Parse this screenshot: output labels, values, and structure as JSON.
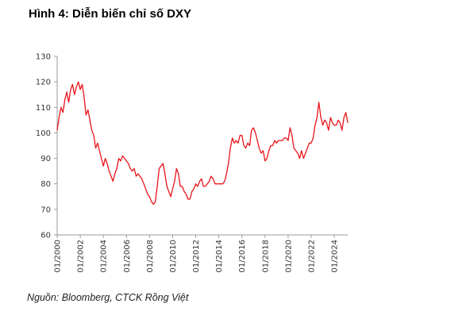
{
  "header": {
    "title": "Hình 4: Diễn biến chỉ số DXY"
  },
  "footer": {
    "source": "Nguồn: Bloomberg,  CTCK Rồng Việt"
  },
  "colors": {
    "series": "#e8141b",
    "axis": "#9a9a9a",
    "text": "#333333"
  },
  "chart_data": {
    "type": "line",
    "title": "",
    "xlabel": "",
    "ylabel": "",
    "ylim": [
      60,
      130
    ],
    "yticks": [
      60,
      70,
      80,
      90,
      100,
      110,
      120,
      130
    ],
    "xlim": [
      "2000-01",
      "2025-03"
    ],
    "xtick_labels": [
      "01/2000",
      "01/2002",
      "01/2004",
      "01/2006",
      "01/2008",
      "01/2010",
      "01/2012",
      "01/2014",
      "01/2016",
      "01/2018",
      "01/2020",
      "01/2022",
      "01/2024"
    ],
    "grid": false,
    "legend": "none",
    "series": [
      {
        "x": [
          "2000-01",
          "2000-03",
          "2000-05",
          "2000-07",
          "2000-09",
          "2000-11",
          "2001-01",
          "2001-03",
          "2001-05",
          "2001-07",
          "2001-09",
          "2001-11",
          "2002-01",
          "2002-03",
          "2002-05",
          "2002-07",
          "2002-09",
          "2002-11",
          "2003-01",
          "2003-03",
          "2003-05",
          "2003-07",
          "2003-09",
          "2003-11",
          "2004-01",
          "2004-03",
          "2004-05",
          "2004-07",
          "2004-09",
          "2004-11",
          "2005-01",
          "2005-03",
          "2005-05",
          "2005-07",
          "2005-09",
          "2005-11",
          "2006-01",
          "2006-03",
          "2006-05",
          "2006-07",
          "2006-09",
          "2006-11",
          "2007-01",
          "2007-03",
          "2007-05",
          "2007-07",
          "2007-09",
          "2007-11",
          "2008-01",
          "2008-03",
          "2008-05",
          "2008-07",
          "2008-09",
          "2008-11",
          "2009-01",
          "2009-03",
          "2009-05",
          "2009-07",
          "2009-09",
          "2009-11",
          "2010-01",
          "2010-03",
          "2010-05",
          "2010-07",
          "2010-09",
          "2010-11",
          "2011-01",
          "2011-03",
          "2011-05",
          "2011-07",
          "2011-09",
          "2011-11",
          "2012-01",
          "2012-03",
          "2012-05",
          "2012-07",
          "2012-09",
          "2012-11",
          "2013-01",
          "2013-03",
          "2013-05",
          "2013-07",
          "2013-09",
          "2013-11",
          "2014-01",
          "2014-03",
          "2014-05",
          "2014-07",
          "2014-09",
          "2014-11",
          "2015-01",
          "2015-03",
          "2015-05",
          "2015-07",
          "2015-09",
          "2015-11",
          "2016-01",
          "2016-03",
          "2016-05",
          "2016-07",
          "2016-09",
          "2016-11",
          "2017-01",
          "2017-03",
          "2017-05",
          "2017-07",
          "2017-09",
          "2017-11",
          "2018-01",
          "2018-03",
          "2018-05",
          "2018-07",
          "2018-09",
          "2018-11",
          "2019-01",
          "2019-03",
          "2019-05",
          "2019-07",
          "2019-09",
          "2019-11",
          "2020-01",
          "2020-03",
          "2020-05",
          "2020-07",
          "2020-09",
          "2020-11",
          "2021-01",
          "2021-03",
          "2021-05",
          "2021-07",
          "2021-09",
          "2021-11",
          "2022-01",
          "2022-03",
          "2022-05",
          "2022-07",
          "2022-09",
          "2022-11",
          "2023-01",
          "2023-03",
          "2023-05",
          "2023-07",
          "2023-09",
          "2023-11",
          "2024-01",
          "2024-03",
          "2024-05",
          "2024-07",
          "2024-09",
          "2024-11",
          "2025-01",
          "2025-03"
        ],
        "values": [
          101,
          106,
          110,
          108,
          113,
          116,
          112,
          117,
          119,
          115,
          118,
          120,
          117,
          119,
          114,
          107,
          109,
          105,
          101,
          99,
          94,
          96,
          93,
          90,
          87,
          90,
          88,
          85,
          83,
          81,
          84,
          86,
          90,
          89,
          91,
          90,
          89,
          88,
          86,
          85,
          86,
          83,
          84,
          83,
          82,
          80,
          78,
          76,
          75,
          73,
          72,
          73,
          79,
          86,
          87,
          88,
          84,
          79,
          77,
          75,
          78,
          81,
          86,
          84,
          79,
          79,
          77,
          76,
          74,
          74,
          77,
          78,
          80,
          79,
          81,
          82,
          79,
          79,
          80,
          81,
          83,
          82,
          80,
          80,
          80,
          80,
          80,
          81,
          84,
          88,
          94,
          98,
          96,
          97,
          96,
          99,
          99,
          95,
          94,
          96,
          95,
          101,
          102,
          100,
          97,
          94,
          92,
          93,
          89,
          90,
          93,
          95,
          95,
          97,
          96,
          97,
          97,
          97,
          98,
          98,
          97,
          102,
          99,
          94,
          93,
          92,
          90,
          93,
          90,
          92,
          94,
          96,
          96,
          98,
          103,
          106,
          112,
          106,
          103,
          105,
          104,
          101,
          106,
          104,
          103,
          103,
          105,
          104,
          101,
          106,
          108,
          104
        ]
      }
    ]
  }
}
